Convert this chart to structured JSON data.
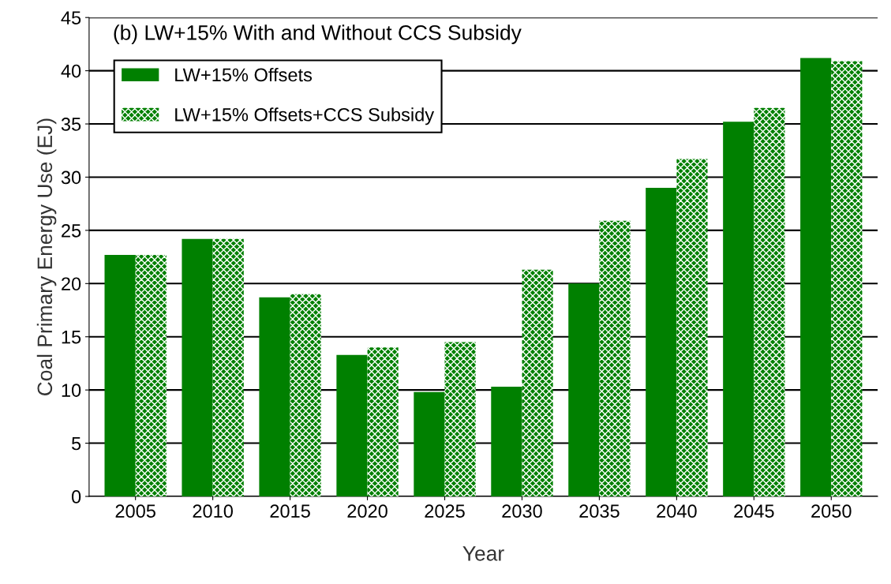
{
  "chart_data": {
    "type": "bar",
    "title": "(b) LW+15% With and Without CCS Subsidy",
    "xlabel": "Year",
    "ylabel": "Coal Primary Energy Use (EJ)",
    "categories": [
      "2005",
      "2010",
      "2015",
      "2020",
      "2025",
      "2030",
      "2035",
      "2040",
      "2045",
      "2050"
    ],
    "series": [
      {
        "name": "LW+15% Offsets",
        "color": "#008000",
        "values": [
          22.7,
          24.2,
          18.7,
          13.3,
          9.8,
          10.3,
          20.0,
          29.0,
          35.2,
          41.2
        ]
      },
      {
        "name": "LW+15% Offsets+CCS Subsidy",
        "color": "#008000",
        "values": [
          22.7,
          24.2,
          19.0,
          14.0,
          14.5,
          21.3,
          25.9,
          31.7,
          36.5,
          40.9
        ]
      }
    ],
    "ylim": [
      0,
      45
    ],
    "yticks": [
      0,
      5,
      10,
      15,
      20,
      25,
      30,
      35,
      40,
      45
    ],
    "grid": "y",
    "legend": "top left"
  }
}
